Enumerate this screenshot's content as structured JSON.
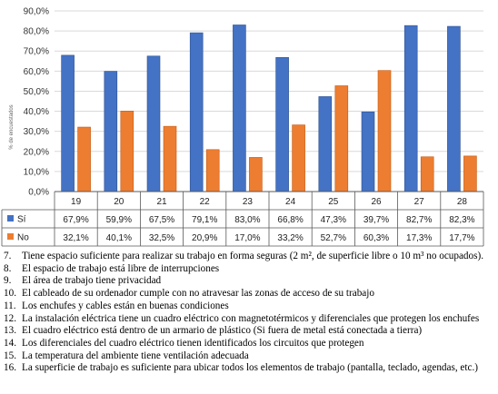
{
  "chart_data": {
    "type": "bar",
    "categories": [
      "19",
      "20",
      "21",
      "22",
      "23",
      "24",
      "25",
      "26",
      "27",
      "28"
    ],
    "series": [
      {
        "name": "Sí",
        "color": "#4472c4",
        "values": [
          67.9,
          59.9,
          67.5,
          79.1,
          83.0,
          66.8,
          47.3,
          39.7,
          82.7,
          82.3
        ],
        "labels": [
          "67,9%",
          "59,9%",
          "67,5%",
          "79,1%",
          "83,0%",
          "66,8%",
          "47,3%",
          "39,7%",
          "82,7%",
          "82,3%"
        ]
      },
      {
        "name": "No",
        "color": "#ed7d31",
        "values": [
          32.1,
          40.1,
          32.5,
          20.9,
          17.0,
          33.2,
          52.7,
          60.3,
          17.3,
          17.7
        ],
        "labels": [
          "32,1%",
          "40,1%",
          "32,5%",
          "20,9%",
          "17,0%",
          "33,2%",
          "52,7%",
          "60,3%",
          "17,3%",
          "17,7%"
        ]
      }
    ],
    "yticks": [
      "0,0%",
      "10,0%",
      "20,0%",
      "30,0%",
      "40,0%",
      "50,0%",
      "60,0%",
      "70,0%",
      "80,0%",
      "90,0%"
    ],
    "ylim": [
      0,
      90
    ],
    "ylabel": "% de encuestados",
    "grid": true,
    "legend": "data-table"
  },
  "notes": [
    {
      "num": "7.",
      "text": "Tiene espacio suficiente para realizar su trabajo en forma seguras (2 m², de superficie libre o 10 m³ no ocupados)."
    },
    {
      "num": "8.",
      "text": "El espacio de trabajo está libre de interrupciones"
    },
    {
      "num": "9.",
      "text": "El área de trabajo tiene privacidad"
    },
    {
      "num": "10.",
      "text": "El cableado de su ordenador cumple con no atravesar las zonas de acceso de su trabajo"
    },
    {
      "num": "11.",
      "text": "Los enchufes y cables están en buenas condiciones"
    },
    {
      "num": "12.",
      "text": "La instalación eléctrica tiene un cuadro eléctrico con magnetotérmicos y diferenciales que protegen los enchufes"
    },
    {
      "num": "13.",
      "text": "El cuadro eléctrico está dentro de un armario de plástico (Si fuera de metal está conectada a tierra)"
    },
    {
      "num": "14.",
      "text": "Los diferenciales del cuadro eléctrico tienen identificados los circuitos que protegen"
    },
    {
      "num": "15.",
      "text": "La temperatura del ambiente tiene ventilación adecuada"
    },
    {
      "num": "16.",
      "text": "La superficie de trabajo es suficiente para ubicar todos los elementos de trabajo (pantalla, teclado, agendas, etc.)"
    }
  ]
}
